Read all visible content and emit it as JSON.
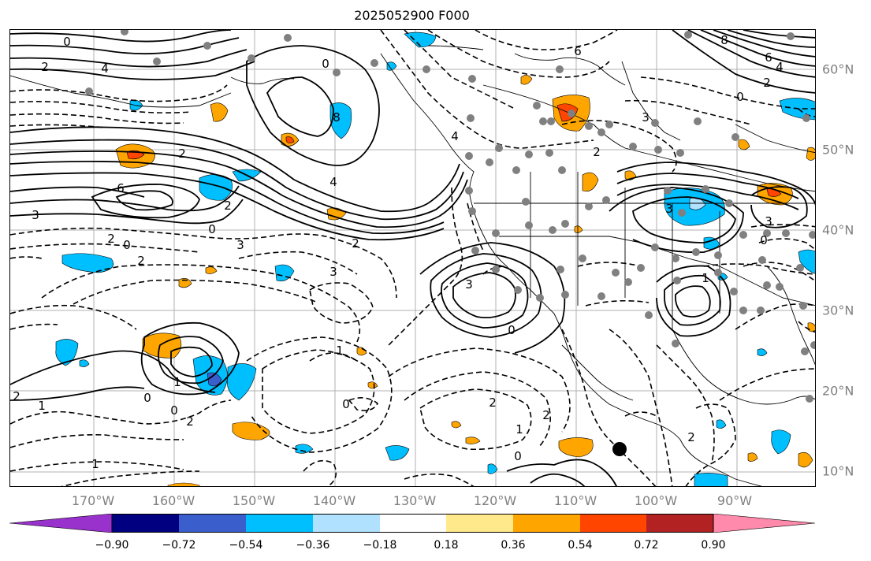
{
  "title": "2025052900 F000",
  "longitude_labels": [
    "170°W",
    "160°W",
    "150°W",
    "140°W",
    "130°W",
    "120°W",
    "110°W",
    "100°W",
    "90°W"
  ],
  "latitude_labels": [
    "60°N",
    "50°N",
    "40°N",
    "30°N",
    "20°N",
    "10°N"
  ],
  "colorbar": {
    "tick_labels": [
      "−0.90",
      "−0.72",
      "−0.54",
      "−0.36",
      "−0.18",
      "0.18",
      "0.36",
      "0.54",
      "0.72",
      "0.90"
    ],
    "colors": [
      "#9932cc",
      "#000080",
      "#3a5fcd",
      "#00bfff",
      "#b0e2ff",
      "#ffffff",
      "#ffe98a",
      "#ffa500",
      "#ff4500",
      "#b22222",
      "#ff8aac"
    ]
  },
  "contour_labels": {
    "l0": "0",
    "l1": "2",
    "l2": "4",
    "l3": "0",
    "l4": "2",
    "l5": "4",
    "l6": "8",
    "l7": "6",
    "l8": "2",
    "l9": "6",
    "l10": "8",
    "l11": "4",
    "l12": "3",
    "l13": "2",
    "l14": "0",
    "l15": "0",
    "l16": "2",
    "l17": "2",
    "l18": "3",
    "l19": "3",
    "l20": "4",
    "l21": "6",
    "l22": "2",
    "l23": "0",
    "l24": "3",
    "l25": "2",
    "l26": "0",
    "l27": "0",
    "l28": "1",
    "l29": "3",
    "l30": "3",
    "l31": "3",
    "l32": "1",
    "l33": "1",
    "l34": "0",
    "l35": "2",
    "l36": "1",
    "l37": "2",
    "l38": "0",
    "l39": "2",
    "l40": "0",
    "l41": "2",
    "l42": "1",
    "l43": "0",
    "l44": "1",
    "l45": "2"
  },
  "station_dots_color": "#808080",
  "marker_color": "#000000"
}
